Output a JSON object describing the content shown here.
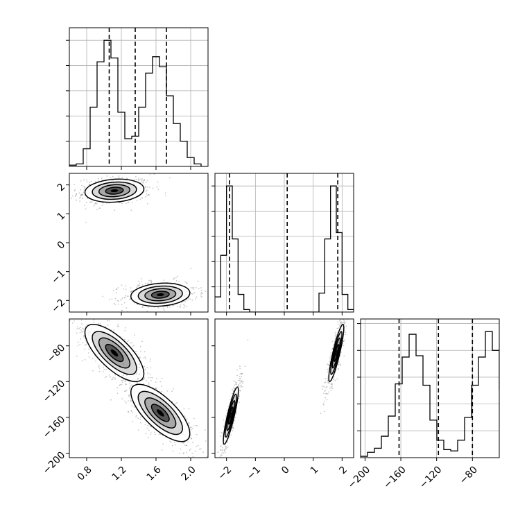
{
  "chart_data": {
    "type": "corner",
    "parameters": 3,
    "grid": true,
    "colors": {
      "line": "#000000",
      "grid": "#b0b0b0",
      "density": "#000000"
    },
    "params": [
      {
        "ticks": [
          0.8,
          1.2,
          1.6,
          2.0
        ],
        "tick_labels": [
          "0.8",
          "1.2",
          "1.6",
          "2.0"
        ],
        "range": [
          0.6,
          2.2
        ]
      },
      {
        "ticks": [
          -2,
          -1,
          0,
          1,
          2
        ],
        "tick_labels": [
          "−2",
          "−1",
          "0",
          "1",
          "2"
        ],
        "range": [
          -2.4,
          2.4
        ]
      },
      {
        "ticks": [
          -200,
          -160,
          -120,
          -80
        ],
        "tick_labels": [
          "−200",
          "−160",
          "−120",
          "−80"
        ],
        "range": [
          -205,
          -50
        ]
      }
    ],
    "quantiles": [
      [
        1.06,
        1.36,
        1.72
      ],
      [
        -1.9,
        0.1,
        1.85
      ],
      [
        -162,
        -118,
        -80
      ]
    ],
    "histograms": [
      {
        "param": 0,
        "x_start": 0.6,
        "bin_width": 0.08,
        "counts": [
          0.01,
          0.02,
          0.14,
          0.47,
          0.83,
          1.0,
          0.86,
          0.43,
          0.22,
          0.24,
          0.47,
          0.74,
          0.87,
          0.79,
          0.56,
          0.34,
          0.2,
          0.07,
          0.02,
          0.0
        ]
      },
      {
        "param": 1,
        "x_start": -2.4,
        "bin_width": 0.2,
        "counts": [
          0.12,
          0.45,
          1.0,
          0.58,
          0.14,
          0.02,
          0.0,
          0.0,
          0.0,
          0.0,
          0.0,
          0.0,
          0.0,
          0.0,
          0.0,
          0.0,
          0.0,
          0.0,
          0.15,
          0.58,
          1.0,
          0.63,
          0.14,
          0.02
        ]
      },
      {
        "param": 2,
        "x_start": -205,
        "bin_width": 7.75,
        "counts": [
          0.01,
          0.04,
          0.07,
          0.16,
          0.31,
          0.55,
          0.75,
          0.92,
          0.76,
          0.54,
          0.28,
          0.13,
          0.06,
          0.05,
          0.13,
          0.3,
          0.54,
          0.75,
          0.94,
          0.8,
          0.51,
          0.13,
          0.01,
          0.0
        ]
      }
    ],
    "joint_modes": [
      {
        "x_param": 0,
        "y_param": 1,
        "modes": [
          {
            "mean": [
              1.12,
              1.8
            ],
            "sd": [
              0.17,
              0.2
            ],
            "corr": 0.15
          },
          {
            "mean": [
              1.65,
              -1.8
            ],
            "sd": [
              0.17,
              0.2
            ],
            "corr": 0.15
          }
        ]
      },
      {
        "x_param": 0,
        "y_param": 2,
        "modes": [
          {
            "mean": [
              1.12,
              -88
            ],
            "sd": [
              0.17,
              16
            ],
            "corr": -0.72
          },
          {
            "mean": [
              1.65,
              -155
            ],
            "sd": [
              0.17,
              16
            ],
            "corr": -0.72
          }
        ]
      },
      {
        "x_param": 1,
        "y_param": 2,
        "modes": [
          {
            "mean": [
              -1.85,
              -158
            ],
            "sd": [
              0.13,
              16
            ],
            "corr": 0.88
          },
          {
            "mean": [
              1.8,
              -88
            ],
            "sd": [
              0.13,
              16
            ],
            "corr": 0.88
          }
        ]
      }
    ]
  }
}
